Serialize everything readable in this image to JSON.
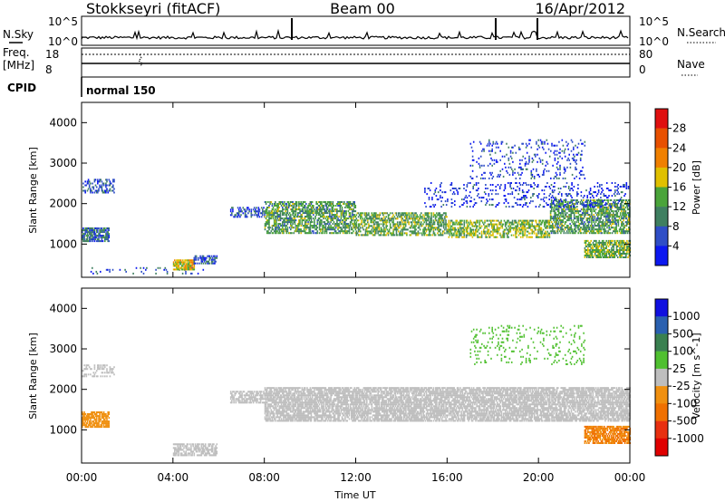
{
  "header": {
    "station": "Stokkseyri (fitACF)",
    "beam": "Beam 00",
    "date": "16/Apr/2012"
  },
  "status_panel": {
    "nsky_label": "N.Sky",
    "nsearch_label": "N.Search",
    "noise_ticks_left": [
      "10^5",
      "10^0"
    ],
    "noise_ticks_right": [
      "10^5",
      "10^0"
    ],
    "freq_label": "Freq.",
    "freq_unit": "[MHz]",
    "freq_ticks": [
      "18",
      "8"
    ],
    "nave_label": "Nave",
    "nave_ticks": [
      "80",
      "0"
    ],
    "cpid_label": "CPID",
    "cpid_value": "normal 150"
  },
  "colors": {
    "power": [
      "#0c18f0",
      "#2f4ec6",
      "#3f7f60",
      "#4aa43a",
      "#e0c000",
      "#f08000",
      "#e85000",
      "#e01010"
    ],
    "velocity": [
      "#1010e0",
      "#2a60b0",
      "#3a8050",
      "#50c030",
      "#bebebe",
      "#f09010",
      "#f07000",
      "#e83010",
      "#e00000"
    ]
  },
  "chart_data": [
    {
      "type": "heatmap",
      "title": "Power",
      "ylabel": "Slant Range [km]",
      "xlabel": "",
      "x_ticks": [
        "00:00",
        "04:00",
        "08:00",
        "12:00",
        "16:00",
        "20:00",
        "00:00"
      ],
      "y_ticks": [
        "1000",
        "2000",
        "3000",
        "4000"
      ],
      "xlim_hours": [
        0,
        24
      ],
      "ylim_km": [
        180,
        4500
      ],
      "colorbar": {
        "label": "Power [dB]",
        "ticks": [
          "4",
          "8",
          "12",
          "16",
          "20",
          "24",
          "28"
        ],
        "range": [
          0,
          32
        ]
      },
      "regions": [
        {
          "t0": 0.0,
          "t1": 1.2,
          "r0": 1050,
          "r1": 1400,
          "level": 8,
          "density": 0.75
        },
        {
          "t0": 0.0,
          "t1": 1.4,
          "r0": 2250,
          "r1": 2600,
          "level": 6,
          "density": 0.35
        },
        {
          "t0": 0.3,
          "t1": 5.5,
          "r0": 250,
          "r1": 420,
          "level": 6,
          "density": 0.1
        },
        {
          "t0": 4.0,
          "t1": 4.9,
          "r0": 350,
          "r1": 600,
          "level": 18,
          "density": 0.85
        },
        {
          "t0": 4.9,
          "t1": 5.9,
          "r0": 500,
          "r1": 700,
          "level": 6,
          "density": 0.6
        },
        {
          "t0": 6.5,
          "t1": 8.0,
          "r0": 1650,
          "r1": 1900,
          "level": 5,
          "density": 0.45
        },
        {
          "t0": 8.0,
          "t1": 12.0,
          "r0": 1250,
          "r1": 2050,
          "level": 12,
          "density": 0.6
        },
        {
          "t0": 12.0,
          "t1": 16.0,
          "r0": 1200,
          "r1": 1750,
          "level": 13,
          "density": 0.55
        },
        {
          "t0": 16.0,
          "t1": 20.5,
          "r0": 1150,
          "r1": 1600,
          "level": 15,
          "density": 0.55
        },
        {
          "t0": 20.5,
          "t1": 24.0,
          "r0": 1250,
          "r1": 2100,
          "level": 12,
          "density": 0.6
        },
        {
          "t0": 22.0,
          "t1": 24.0,
          "r0": 650,
          "r1": 1100,
          "level": 14,
          "density": 0.7
        },
        {
          "t0": 17.0,
          "t1": 22.0,
          "r0": 2600,
          "r1": 3550,
          "level": 5,
          "density": 0.12
        },
        {
          "t0": 15.0,
          "t1": 24.0,
          "r0": 1900,
          "r1": 2500,
          "level": 4,
          "density": 0.15
        }
      ]
    },
    {
      "type": "heatmap",
      "title": "Velocity",
      "ylabel": "Slant Range [km]",
      "xlabel": "Time UT",
      "x_ticks": [
        "00:00",
        "04:00",
        "08:00",
        "12:00",
        "16:00",
        "20:00",
        "00:00"
      ],
      "y_ticks": [
        "1000",
        "2000",
        "3000",
        "4000"
      ],
      "xlim_hours": [
        0,
        24
      ],
      "ylim_km": [
        180,
        4500
      ],
      "colorbar": {
        "label": "Velocity [m s^-1]",
        "ticks": [
          "1000",
          "500",
          "100",
          "25",
          "-25",
          "-100",
          "-500",
          "-1000"
        ],
        "range": [
          -1200,
          1200
        ]
      },
      "regions": [
        {
          "t0": 0.0,
          "t1": 1.2,
          "r0": 1050,
          "r1": 1450,
          "level": -200,
          "density": 0.75
        },
        {
          "t0": 0.0,
          "t1": 1.4,
          "r0": 2300,
          "r1": 2600,
          "level": 0,
          "density": 0.35
        },
        {
          "t0": 4.0,
          "t1": 5.9,
          "r0": 350,
          "r1": 650,
          "level": -80,
          "density": 0.65
        },
        {
          "t0": 6.5,
          "t1": 8.0,
          "r0": 1650,
          "r1": 1950,
          "level": 0,
          "density": 0.6
        },
        {
          "t0": 8.0,
          "t1": 24.0,
          "r0": 1200,
          "r1": 2050,
          "level": 0,
          "density": 0.75
        },
        {
          "t0": 22.0,
          "t1": 24.0,
          "r0": 650,
          "r1": 1100,
          "level": -400,
          "density": 0.75
        },
        {
          "t0": 17.0,
          "t1": 22.0,
          "r0": 2600,
          "r1": 3550,
          "level": 200,
          "density": 0.1
        }
      ]
    }
  ]
}
